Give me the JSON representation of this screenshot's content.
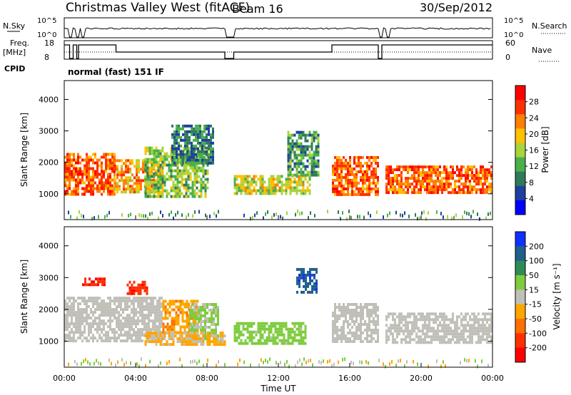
{
  "header": {
    "station": "Christmas Valley West (fitACF)",
    "beam": "Beam 16",
    "date": "30/Sep/2012"
  },
  "nsky_panel": {
    "left_label": "N.Sky",
    "left_ticks": [
      "10^5",
      "10^0"
    ],
    "right_ticks": [
      "10^5",
      "10^0"
    ],
    "right_label": "N.Search"
  },
  "freq_panel": {
    "left_label_line1": "Freq.",
    "left_label_line2": "[MHz]",
    "left_ticks": [
      "18",
      "8"
    ],
    "right_ticks": [
      "60",
      "0"
    ],
    "right_label": "Nave"
  },
  "cpid": {
    "label": "CPID",
    "mode": "normal (fast) 151 IF"
  },
  "x_axis": {
    "label": "Time UT",
    "ticks": [
      "00:00",
      "04:00",
      "08:00",
      "12:00",
      "16:00",
      "20:00",
      "00:00"
    ]
  },
  "colors": {
    "power_scale": [
      "#0000ff",
      "#1f3fa0",
      "#2f7a5a",
      "#4ab04a",
      "#a8d43c",
      "#ffc000",
      "#ff7f00",
      "#ff3000",
      "#ff0000"
    ],
    "velocity_scale": [
      "#1030ff",
      "#20608a",
      "#2e8b57",
      "#7fcc3f",
      "#c0c0b8",
      "#ffa500",
      "#ff7000",
      "#ff3000",
      "#ff0000"
    ],
    "ground_scatter": "#c0c0b8"
  },
  "chart_data": [
    {
      "type": "heatmap",
      "title": "Power",
      "xlabel": "",
      "ylabel": "Slant Range [km]",
      "y_ticks": [
        "1000",
        "2000",
        "3000",
        "4000"
      ],
      "ylim": [
        180,
        4600
      ],
      "xlim_hours": [
        0,
        24
      ],
      "colorbar": {
        "label": "Power [dB]",
        "ticks": [
          "4",
          "8",
          "12",
          "16",
          "20",
          "24",
          "28"
        ],
        "range": [
          0,
          32
        ]
      },
      "echo_bands": [
        {
          "t0": 0.0,
          "t1": 2.8,
          "r0": 1000,
          "r1": 2300,
          "power_db": 26
        },
        {
          "t0": 2.8,
          "t1": 5.5,
          "r0": 1100,
          "r1": 2100,
          "power_db": 22
        },
        {
          "t0": 4.5,
          "t1": 8.0,
          "r0": 900,
          "r1": 2500,
          "power_db": 14
        },
        {
          "t0": 6.0,
          "t1": 8.3,
          "r0": 2000,
          "r1": 3200,
          "power_db": 8
        },
        {
          "t0": 9.5,
          "t1": 13.8,
          "r0": 1000,
          "r1": 1600,
          "power_db": 18
        },
        {
          "t0": 12.5,
          "t1": 14.2,
          "r0": 1600,
          "r1": 3000,
          "power_db": 10
        },
        {
          "t0": 15.0,
          "t1": 17.6,
          "r0": 1000,
          "r1": 2200,
          "power_db": 26
        },
        {
          "t0": 18.0,
          "t1": 24.0,
          "r0": 1000,
          "r1": 1900,
          "power_db": 26
        }
      ]
    },
    {
      "type": "heatmap",
      "title": "Velocity",
      "xlabel": "Time UT",
      "ylabel": "Slant Range [km]",
      "y_ticks": [
        "1000",
        "2000",
        "3000",
        "4000"
      ],
      "ylim": [
        180,
        4600
      ],
      "xlim_hours": [
        0,
        24
      ],
      "colorbar": {
        "label": "Velocity [m s⁻¹]",
        "ticks": [
          "200",
          "100",
          "50",
          "15",
          "-15",
          "-50",
          "-100",
          "-200"
        ],
        "range": [
          -250,
          250
        ]
      },
      "echo_bands": [
        {
          "t0": 0.0,
          "t1": 5.5,
          "r0": 1000,
          "r1": 2400,
          "velocity": 0
        },
        {
          "t0": 1.0,
          "t1": 2.4,
          "r0": 2800,
          "r1": 3000,
          "velocity": -220
        },
        {
          "t0": 3.5,
          "t1": 4.6,
          "r0": 2500,
          "r1": 2900,
          "velocity": -200
        },
        {
          "t0": 5.5,
          "t1": 7.5,
          "r0": 1300,
          "r1": 2300,
          "velocity": -80
        },
        {
          "t0": 7.0,
          "t1": 8.6,
          "r0": 1000,
          "r1": 2200,
          "velocity": 40
        },
        {
          "t0": 4.5,
          "t1": 9.0,
          "r0": 900,
          "r1": 1300,
          "velocity": -40
        },
        {
          "t0": 9.5,
          "t1": 13.5,
          "r0": 900,
          "r1": 1600,
          "velocity": 60
        },
        {
          "t0": 13.0,
          "t1": 14.2,
          "r0": 2500,
          "r1": 3300,
          "velocity": 200
        },
        {
          "t0": 15.0,
          "t1": 17.6,
          "r0": 1000,
          "r1": 2200,
          "velocity": 0
        },
        {
          "t0": 18.0,
          "t1": 24.0,
          "r0": 1000,
          "r1": 1900,
          "velocity": 0
        }
      ]
    }
  ]
}
